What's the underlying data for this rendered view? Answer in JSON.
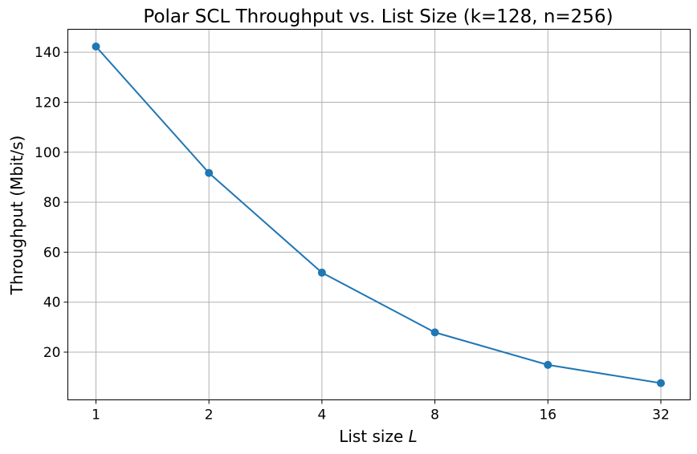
{
  "chart_data": {
    "type": "line",
    "title": "Polar SCL Throughput vs. List Size (k=128, n=256)",
    "xlabel_text": "List size ",
    "xlabel_var": "L",
    "ylabel": "Throughput (Mbit/s)",
    "x_scale": "log2",
    "x": [
      1,
      2,
      4,
      8,
      16,
      32
    ],
    "x_tick_labels": [
      "1",
      "2",
      "4",
      "8",
      "16",
      "32"
    ],
    "y_ticks": [
      20,
      40,
      60,
      80,
      100,
      120,
      140
    ],
    "ylim": [
      0.9,
      149.2
    ],
    "grid": true,
    "series": [
      {
        "values": [
          142.3,
          91.7,
          51.8,
          27.9,
          14.9,
          7.6
        ],
        "color": "#1f77b4",
        "marker": "circle"
      }
    ]
  }
}
